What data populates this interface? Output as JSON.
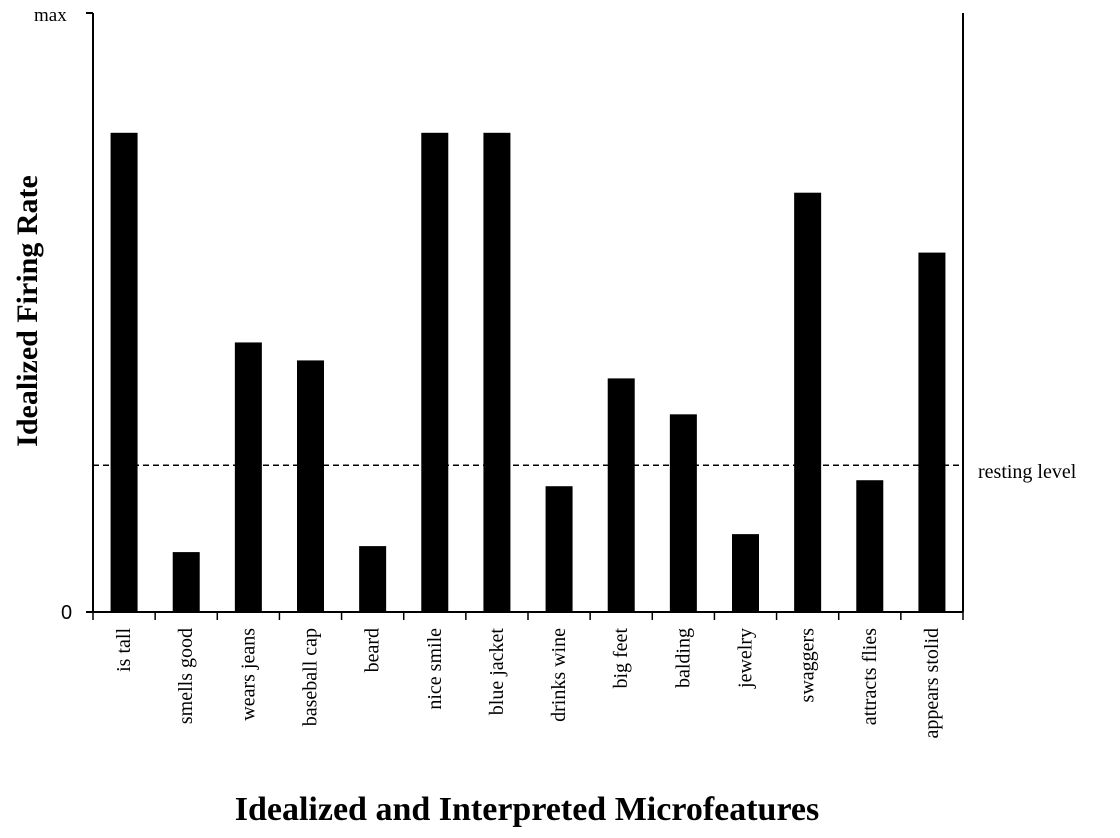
{
  "chart_data": {
    "type": "bar",
    "ylabel": "Idealized Firing Rate",
    "xlabel": "Idealized and Interpreted Microfeatures",
    "y_max_label": "max",
    "y_min_label": "0",
    "ylim": [
      0,
      1
    ],
    "categories": [
      "is tall",
      "smells good",
      "wears jeans",
      "baseball cap",
      "beard",
      "nice smile",
      "blue jacket",
      "drinks wine",
      "big feet",
      "balding",
      "jewelry",
      "swaggers",
      "attracts flies",
      "appears stolid"
    ],
    "values": [
      0.8,
      0.1,
      0.45,
      0.42,
      0.11,
      0.8,
      0.8,
      0.21,
      0.39,
      0.33,
      0.13,
      0.7,
      0.22,
      0.6
    ],
    "reference_line": {
      "label": "resting level",
      "value": 0.245,
      "style": "dashed"
    },
    "bar_color": "#000000",
    "grid": false
  }
}
